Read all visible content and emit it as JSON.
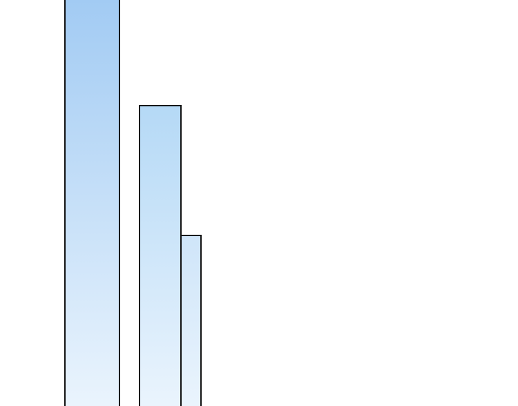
{
  "scene": {
    "background": "#ffffff",
    "outline_color": "#111111",
    "pillars": [
      {
        "gradient_top": "#a2cbf3",
        "gradient_bottom": "#eaf4fd"
      },
      {
        "gradient_top": "#b5d9f6",
        "gradient_bottom": "#eaf4fd"
      },
      {
        "gradient_top": "#cfe5f9",
        "gradient_bottom": "#eaf4fd"
      }
    ]
  }
}
